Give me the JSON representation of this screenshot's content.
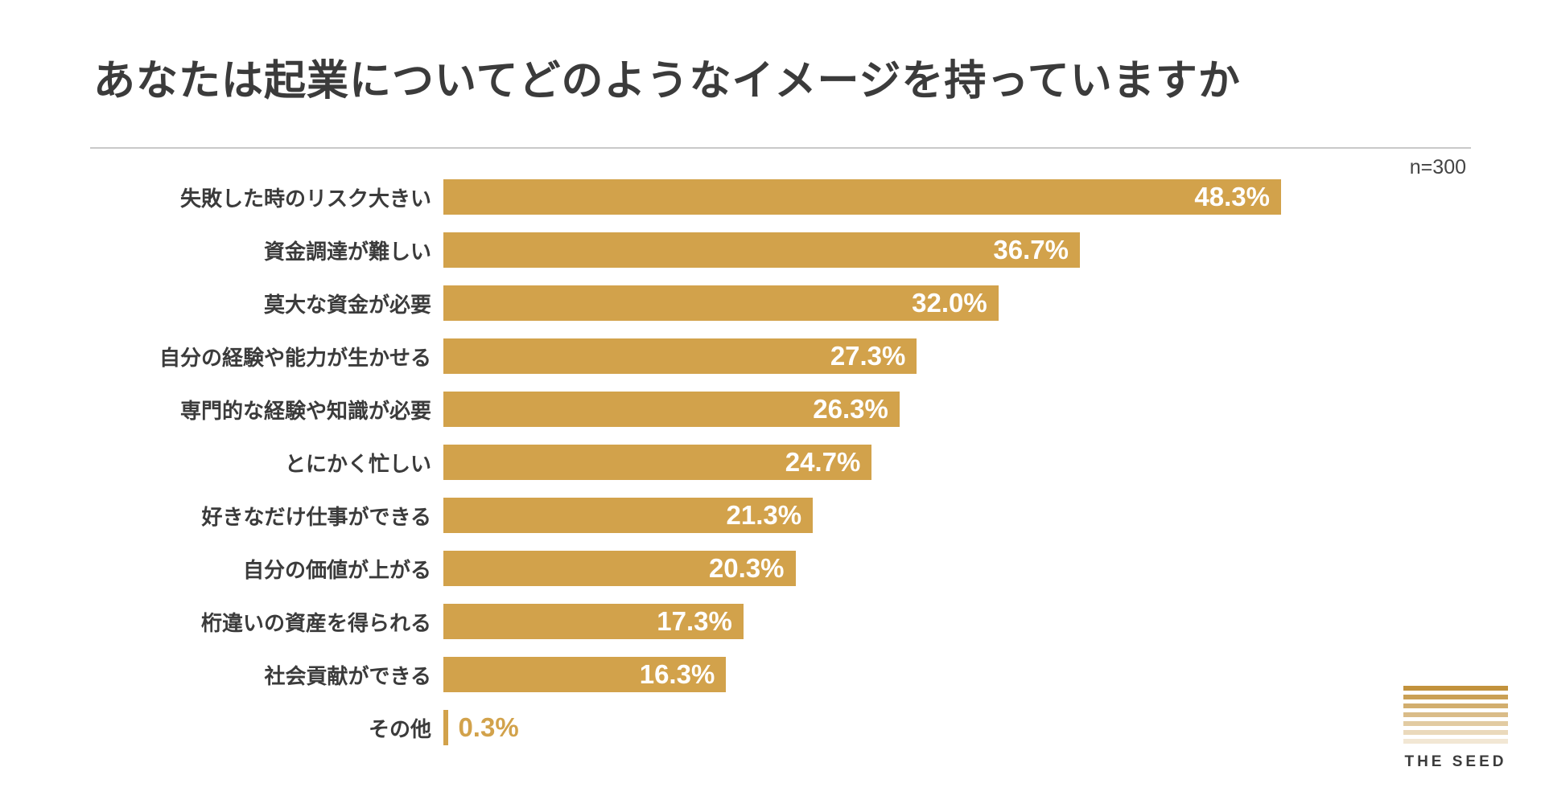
{
  "page": {
    "sample_label": "n=300"
  },
  "chart_data": {
    "type": "bar",
    "orientation": "horizontal",
    "title": "あなたは起業についてどのようなイメージを持っていますか",
    "sample_size": "n=300",
    "categories": [
      "失敗した時のリスク大きい",
      "資金調達が難しい",
      "莫大な資金が必要",
      "自分の経験や能力が生かせる",
      "専門的な経験や知識が必要",
      "とにかく忙しい",
      "好きなだけ仕事ができる",
      "自分の価値が上がる",
      "桁違いの資産を得られる",
      "社会貢献ができる",
      "その他"
    ],
    "values": [
      48.3,
      36.7,
      32.0,
      27.3,
      26.3,
      24.7,
      21.3,
      20.3,
      17.3,
      16.3,
      0.3
    ],
    "value_labels": [
      "48.3%",
      "36.7%",
      "32.0%",
      "27.3%",
      "26.3%",
      "24.7%",
      "21.3%",
      "20.3%",
      "17.3%",
      "16.3%",
      "0.3%"
    ],
    "xlim": [
      0,
      48.3
    ],
    "grid": false,
    "legend": "none",
    "bar_color": "#d2a24b",
    "value_label_color_inside": "#ffffff",
    "value_label_color_outside": "#d2a24b",
    "title_color": "#3b3b3b",
    "outside_label_threshold": 5
  },
  "logo": {
    "text": "THE SEED",
    "stripe_color": "#c2923c",
    "stripe_count": 7
  }
}
